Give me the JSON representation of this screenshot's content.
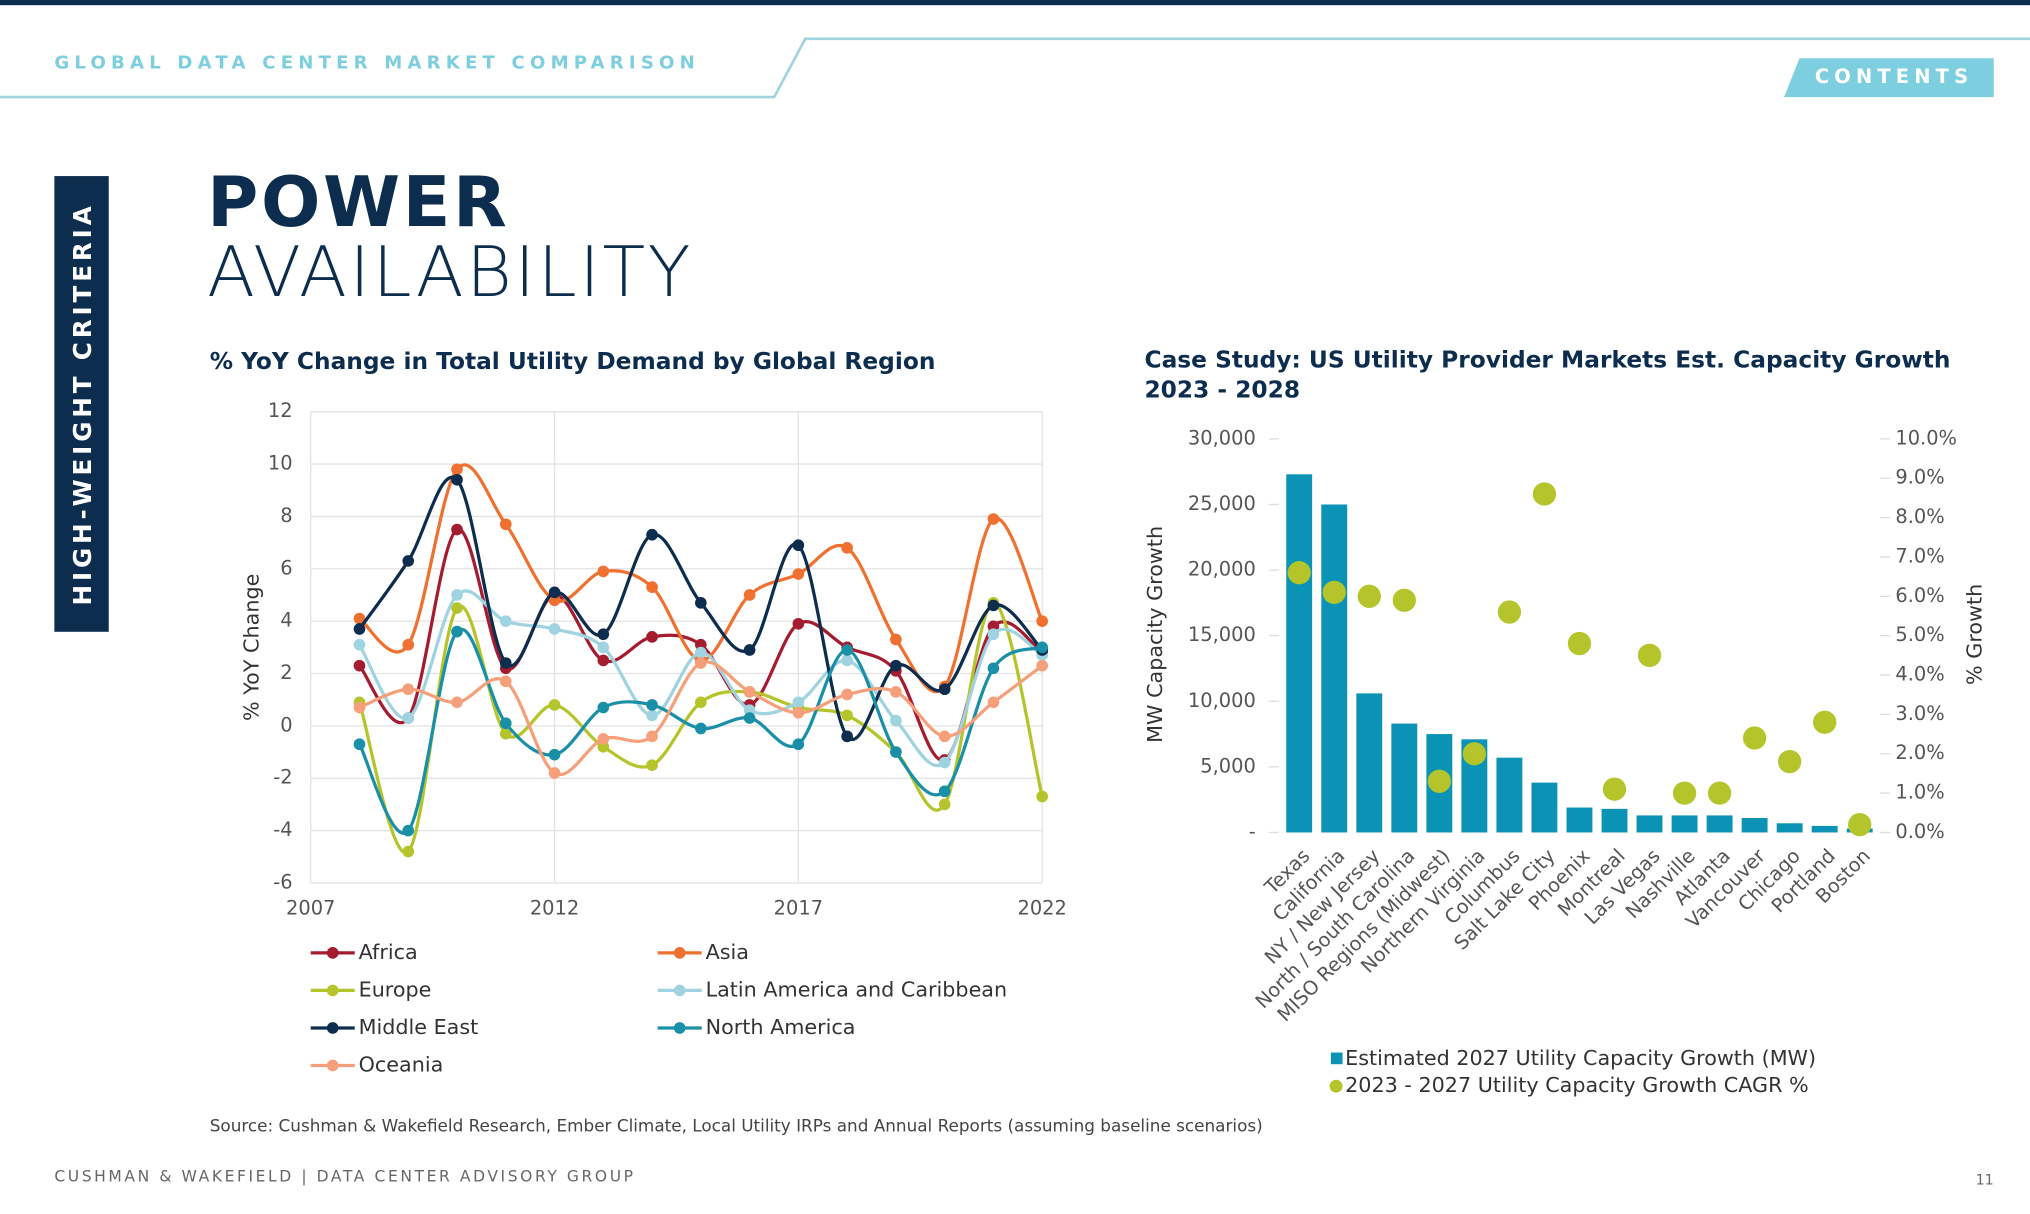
{
  "page": {
    "header": "GLOBAL DATA CENTER MARKET COMPARISON",
    "contents": "CONTENTS",
    "side_tab": "HIGH-WEIGHT CRITERIA",
    "title_bold": "POWER",
    "title_light": "AVAILABILITY",
    "source": "Source: Cushman & Wakefield Research, Ember Climate, Local Utility IRPs and Annual Reports (assuming baseline scenarios)",
    "footer": "CUSHMAN & WAKEFIELD | DATA CENTER ADVISORY GROUP",
    "page_number": "11"
  },
  "chart_data": [
    {
      "type": "line",
      "title": "% YoY Change in Total Utility Demand by Global Region",
      "y_label": "% YoY Change",
      "x": [
        2008,
        2009,
        2010,
        2011,
        2012,
        2013,
        2014,
        2015,
        2016,
        2017,
        2018,
        2019,
        2020,
        2021,
        2022
      ],
      "xlim": [
        2007,
        2022
      ],
      "xticks": [
        2007,
        2012,
        2017,
        2022
      ],
      "ylim": [
        -6,
        12
      ],
      "yticks": [
        -6,
        -4,
        -2,
        0,
        2,
        4,
        6,
        8,
        10,
        12
      ],
      "grid": true,
      "smooth": true,
      "series": [
        {
          "name": "Africa",
          "color": "#a51c30",
          "values": [
            2.3,
            0.3,
            7.5,
            2.2,
            5.0,
            2.5,
            3.4,
            3.1,
            0.8,
            3.9,
            3.0,
            2.1,
            -1.3,
            3.8,
            2.8
          ]
        },
        {
          "name": "Asia",
          "color": "#f07030",
          "values": [
            4.1,
            3.1,
            9.8,
            7.7,
            4.8,
            5.9,
            5.3,
            2.5,
            5.0,
            5.8,
            6.8,
            3.3,
            1.5,
            7.9,
            4.0
          ]
        },
        {
          "name": "Europe",
          "color": "#b5c42a",
          "values": [
            0.9,
            -4.8,
            4.5,
            -0.3,
            0.8,
            -0.8,
            -1.5,
            0.9,
            1.3,
            0.7,
            0.4,
            -1.0,
            -3.0,
            4.7,
            -2.7
          ]
        },
        {
          "name": "Latin America and Caribbean",
          "color": "#9fd3e0",
          "values": [
            3.1,
            0.3,
            5.0,
            4.0,
            3.7,
            3.0,
            0.4,
            2.8,
            0.6,
            0.9,
            2.5,
            0.2,
            -1.4,
            3.5,
            2.7
          ]
        },
        {
          "name": "Middle East",
          "color": "#0d2d4f",
          "values": [
            3.7,
            6.3,
            9.4,
            2.4,
            5.1,
            3.5,
            7.3,
            4.7,
            2.9,
            6.9,
            -0.4,
            2.3,
            1.4,
            4.6,
            2.9
          ]
        },
        {
          "name": "North America",
          "color": "#1a8fa8",
          "values": [
            -0.7,
            -4.0,
            3.6,
            0.1,
            -1.1,
            0.7,
            0.8,
            -0.1,
            0.3,
            -0.7,
            2.9,
            -1.0,
            -2.5,
            2.2,
            3.0
          ]
        },
        {
          "name": "Oceania",
          "color": "#f5a07a",
          "values": [
            0.7,
            1.4,
            0.9,
            1.7,
            -1.8,
            -0.5,
            -0.4,
            2.4,
            1.3,
            0.5,
            1.2,
            1.3,
            -0.4,
            0.9,
            2.3
          ]
        }
      ]
    },
    {
      "type": "bar",
      "title": "Case Study: US Utility Provider Markets Est. Capacity Growth 2023 - 2028",
      "y_label": "MW Capacity Growth",
      "y2_label": "% Growth",
      "categories": [
        "Texas",
        "California",
        "NY / New Jersey",
        "North / South Carolina",
        "MISO Regions (Midwest)",
        "Northern Virginia",
        "Columbus",
        "Salt Lake City",
        "Phoenix",
        "Montreal",
        "Las Vegas",
        "Nashville",
        "Atlanta",
        "Vancouver",
        "Chicago",
        "Portland",
        "Boston"
      ],
      "ylim": [
        0,
        30000
      ],
      "yticks": [
        {
          "value": 0,
          "label": "-"
        },
        {
          "value": 5000,
          "label": "5,000"
        },
        {
          "value": 10000,
          "label": "10,000"
        },
        {
          "value": 15000,
          "label": "15,000"
        },
        {
          "value": 20000,
          "label": "20,000"
        },
        {
          "value": 25000,
          "label": "25,000"
        },
        {
          "value": 30000,
          "label": "30,000"
        }
      ],
      "y2lim": [
        0,
        10
      ],
      "y2ticks": [
        {
          "value": 0,
          "label": "0.0%"
        },
        {
          "value": 1,
          "label": "1.0%"
        },
        {
          "value": 2,
          "label": "2.0%"
        },
        {
          "value": 3,
          "label": "3.0%"
        },
        {
          "value": 4,
          "label": "4.0%"
        },
        {
          "value": 5,
          "label": "5.0%"
        },
        {
          "value": 6,
          "label": "6.0%"
        },
        {
          "value": 7,
          "label": "7.0%"
        },
        {
          "value": 8,
          "label": "8.0%"
        },
        {
          "value": 9,
          "label": "9.0%"
        },
        {
          "value": 10,
          "label": "10.0%"
        }
      ],
      "grid": false,
      "series": [
        {
          "name": "Estimated 2027 Utility Capacity Growth (MW)",
          "type": "bar",
          "color": "#0a93b5",
          "values": [
            27300,
            25000,
            10600,
            8300,
            7500,
            7100,
            5700,
            3800,
            1900,
            1800,
            1300,
            1300,
            1300,
            1100,
            700,
            500,
            300
          ]
        },
        {
          "name": "2023 - 2027 Utility Capacity Growth CAGR %",
          "type": "scatter",
          "axis": "y2",
          "color": "#b5c42a",
          "values": [
            6.6,
            6.1,
            6.0,
            5.9,
            1.3,
            2.0,
            5.6,
            8.6,
            4.8,
            1.1,
            4.5,
            1.0,
            1.0,
            2.4,
            1.8,
            2.8,
            0.2
          ]
        }
      ]
    }
  ]
}
